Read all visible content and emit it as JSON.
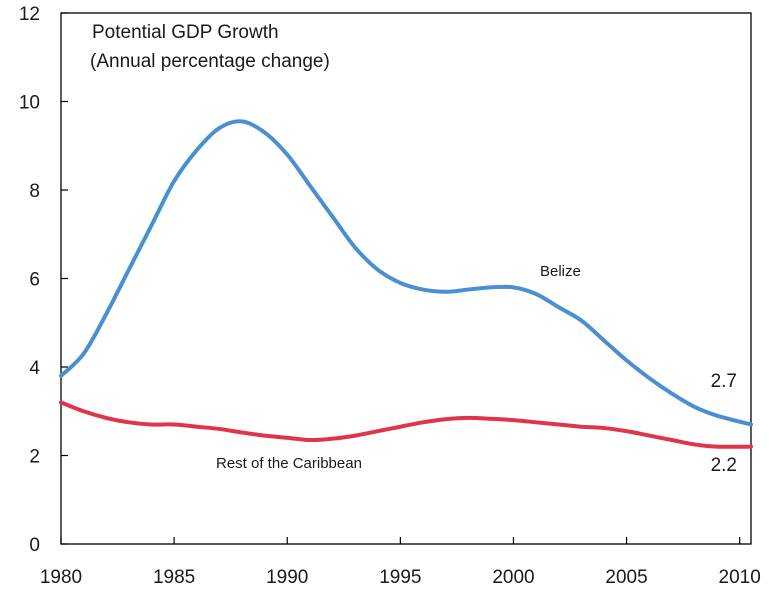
{
  "chart_data": {
    "type": "line",
    "title": "Potential GDP Growth",
    "subtitle": "(Annual percentage change)",
    "xlabel": "",
    "ylabel": "",
    "xlim": [
      1980,
      2010.5
    ],
    "ylim": [
      0,
      12
    ],
    "grid": false,
    "x_ticks": [
      1980,
      1985,
      1990,
      1995,
      2000,
      2005,
      2010
    ],
    "y_ticks": [
      0,
      2,
      4,
      6,
      8,
      10,
      12
    ],
    "series": [
      {
        "name": "Belize",
        "color": "#4a90d0",
        "x": [
          1980,
          1981,
          1982,
          1983,
          1984,
          1985,
          1986,
          1987,
          1988,
          1989,
          1990,
          1991,
          1992,
          1993,
          1994,
          1995,
          1996,
          1997,
          1998,
          1999,
          2000,
          2001,
          2002,
          2003,
          2004,
          2005,
          2006,
          2007,
          2008,
          2009,
          2010.5
        ],
        "values": [
          3.8,
          4.3,
          5.2,
          6.2,
          7.2,
          8.2,
          8.9,
          9.4,
          9.55,
          9.3,
          8.8,
          8.1,
          7.4,
          6.7,
          6.2,
          5.9,
          5.75,
          5.7,
          5.75,
          5.8,
          5.8,
          5.65,
          5.35,
          5.05,
          4.6,
          4.15,
          3.75,
          3.4,
          3.1,
          2.9,
          2.7
        ],
        "end_label": "2.7"
      },
      {
        "name": "Rest of the Caribbean",
        "color": "#e0344a",
        "x": [
          1980,
          1981,
          1982,
          1983,
          1984,
          1985,
          1986,
          1987,
          1988,
          1989,
          1990,
          1991,
          1992,
          1993,
          1994,
          1995,
          1996,
          1997,
          1998,
          1999,
          2000,
          2001,
          2002,
          2003,
          2004,
          2005,
          2006,
          2007,
          2008,
          2009,
          2010.5
        ],
        "values": [
          3.2,
          3.0,
          2.85,
          2.75,
          2.7,
          2.7,
          2.65,
          2.6,
          2.52,
          2.45,
          2.4,
          2.35,
          2.38,
          2.45,
          2.55,
          2.65,
          2.75,
          2.82,
          2.85,
          2.83,
          2.8,
          2.75,
          2.7,
          2.65,
          2.62,
          2.55,
          2.45,
          2.35,
          2.25,
          2.2,
          2.2
        ],
        "end_label": "2.2"
      }
    ]
  }
}
